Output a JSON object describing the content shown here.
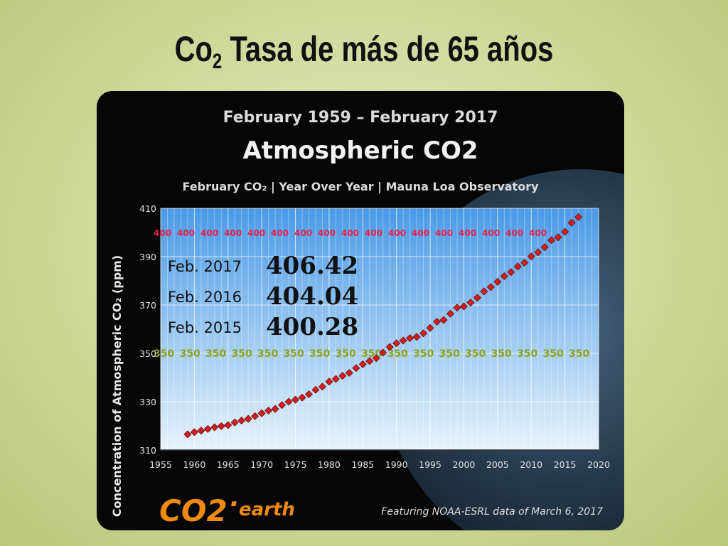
{
  "slide": {
    "title_pre": "Co",
    "title_sub": "2",
    "title_post": " Tasa de más de 65 años"
  },
  "colors": {
    "plot_top": "#4a9ae6",
    "plot_bottom": "#e6f2fb",
    "marker": "#d21e1e",
    "ref400": "#e8204a",
    "ref350": "#8aa21c",
    "brand": "#f08a10"
  },
  "chart_data": {
    "type": "scatter",
    "date_range": "February 1959 – February 2017",
    "title": "Atmospheric CO2",
    "subtitle": "February CO₂  | Year Over Year  | Mauna Loa Observatory",
    "ylabel": "Concentration of Atmospheric CO₂ (ppm)",
    "xlabel": "",
    "xlim": [
      1955,
      2020
    ],
    "ylim": [
      310,
      410
    ],
    "x_ticks": [
      1955,
      1960,
      1965,
      1970,
      1975,
      1980,
      1985,
      1990,
      1995,
      2000,
      2005,
      2010,
      2015,
      2020
    ],
    "y_ticks": [
      310,
      330,
      350,
      370,
      390,
      410
    ],
    "grid": true,
    "reference_lines": [
      {
        "value": 400,
        "label": "400"
      },
      {
        "value": 350,
        "label": "350"
      }
    ],
    "highlights": [
      {
        "label": "Feb. 2017",
        "value": "406.42"
      },
      {
        "label": "Feb. 2016",
        "value": "404.04"
      },
      {
        "label": "Feb. 2015",
        "value": "400.28"
      }
    ],
    "series": [
      {
        "x": [
          1959,
          1960,
          1961,
          1962,
          1963,
          1964,
          1965,
          1966,
          1967,
          1968,
          1969,
          1970,
          1971,
          1972,
          1973,
          1974,
          1975,
          1976,
          1977,
          1978,
          1979,
          1980,
          1981,
          1982,
          1983,
          1984,
          1985,
          1986,
          1987,
          1988,
          1989,
          1990,
          1991,
          1992,
          1993,
          1994,
          1995,
          1996,
          1997,
          1998,
          1999,
          2000,
          2001,
          2002,
          2003,
          2004,
          2005,
          2006,
          2007,
          2008,
          2009,
          2010,
          2011,
          2012,
          2013,
          2014,
          2015,
          2016,
          2017
        ],
        "y": [
          316.5,
          317.4,
          318.0,
          318.7,
          319.4,
          319.9,
          320.3,
          321.4,
          322.2,
          322.9,
          324.0,
          325.2,
          326.3,
          327.0,
          328.6,
          330.0,
          330.8,
          331.7,
          333.1,
          334.9,
          336.2,
          338.3,
          339.4,
          340.7,
          341.9,
          343.9,
          345.5,
          346.8,
          348.0,
          350.3,
          352.6,
          354.2,
          355.3,
          356.3,
          356.8,
          358.3,
          360.5,
          363.1,
          363.8,
          366.4,
          368.9,
          369.4,
          371.0,
          373.0,
          375.6,
          377.4,
          379.6,
          381.9,
          383.6,
          385.9,
          387.5,
          390.1,
          391.8,
          393.9,
          396.8,
          398.0,
          400.3,
          404.0,
          406.4
        ]
      }
    ]
  },
  "footer": {
    "brand_co2": "CO2",
    "brand_earth": "earth",
    "credit": "Featuring NOAA-ESRL data of March 6, 2017"
  }
}
